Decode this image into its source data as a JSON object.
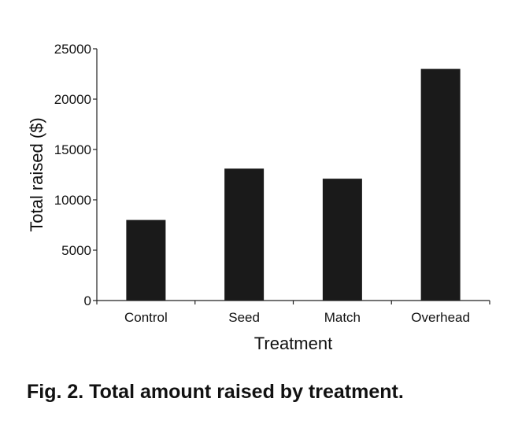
{
  "caption": "Fig. 2. Total amount raised by treatment.",
  "chart_data": {
    "type": "bar",
    "categories": [
      "Control",
      "Seed",
      "Match",
      "Overhead"
    ],
    "values": [
      8000,
      13100,
      12100,
      23000
    ],
    "xlabel": "Treatment",
    "ylabel": "Total raised ($)",
    "ylim": [
      0,
      25000
    ],
    "yticks": [
      0,
      5000,
      10000,
      15000,
      20000,
      25000
    ],
    "grid": false,
    "bar_color": "#1a1a1a",
    "axis_color": "#222222"
  }
}
